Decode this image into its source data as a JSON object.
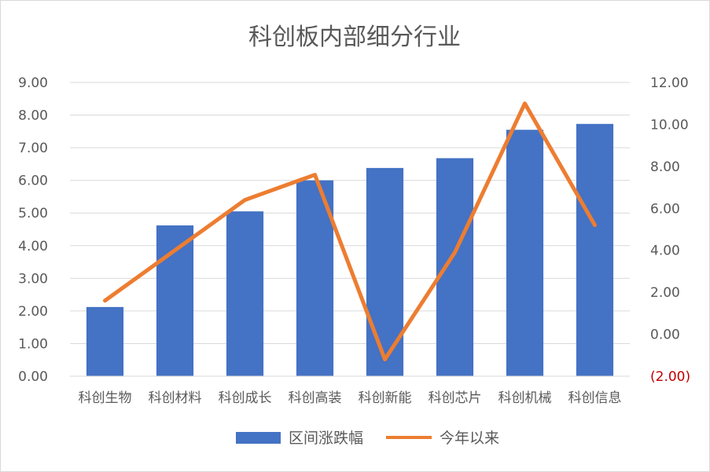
{
  "chart_data": {
    "type": "bar",
    "title": "科创板内部细分行业",
    "categories": [
      "科创生物",
      "科创材料",
      "科创成长",
      "科创高装",
      "科创新能",
      "科创芯片",
      "科创机械",
      "科创信息"
    ],
    "series": [
      {
        "name": "区间涨跌幅",
        "type": "bar",
        "axis": "left",
        "color": "#4472c4",
        "values": [
          2.12,
          4.62,
          5.05,
          6.0,
          6.38,
          6.68,
          7.55,
          7.73
        ]
      },
      {
        "name": "今年以来",
        "type": "line",
        "axis": "right",
        "color": "#ed7d31",
        "values": [
          1.6,
          4.0,
          6.4,
          7.6,
          -1.2,
          3.9,
          11.0,
          5.2
        ]
      }
    ],
    "y_left": {
      "ylim": [
        0,
        9
      ],
      "ticks": [
        "0.00",
        "1.00",
        "2.00",
        "3.00",
        "4.00",
        "5.00",
        "6.00",
        "7.00",
        "8.00",
        "9.00"
      ]
    },
    "y_right": {
      "ylim": [
        -2,
        12
      ],
      "ticks": [
        "(2.00)",
        "0.00",
        "2.00",
        "4.00",
        "6.00",
        "8.00",
        "10.00",
        "12.00"
      ],
      "negative_color": "#c00000"
    },
    "grid": true,
    "legend_position": "bottom"
  }
}
